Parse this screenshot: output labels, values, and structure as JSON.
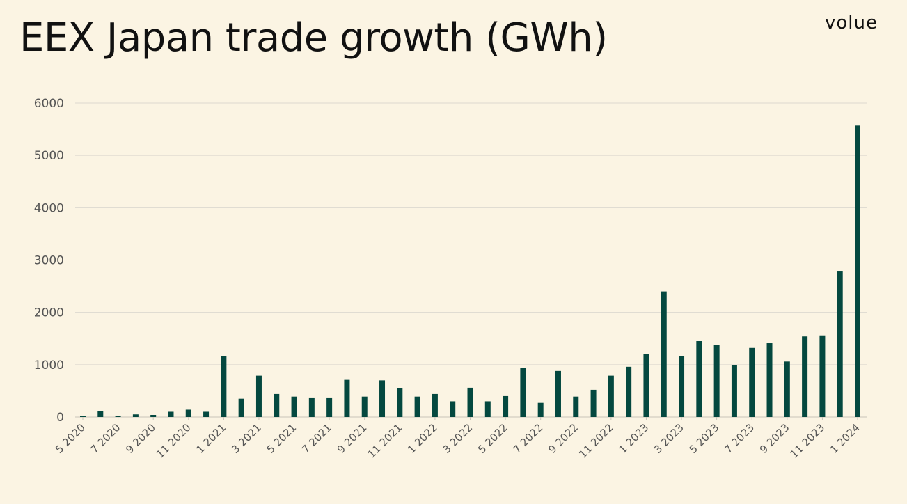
{
  "header": {
    "title": "EEX Japan trade growth (GWh)",
    "logo": "volue"
  },
  "colors": {
    "bar": "#04483f",
    "grid": "#dcd8cf",
    "background": "#fbf4e3"
  },
  "chart_data": {
    "type": "bar",
    "title": "EEX Japan trade growth (GWh)",
    "xlabel": "",
    "ylabel": "",
    "ylim": [
      0,
      6000
    ],
    "yticks": [
      0,
      1000,
      2000,
      3000,
      4000,
      5000,
      6000
    ],
    "grid": true,
    "categories": [
      "5 2020",
      "6 2020",
      "7 2020",
      "8 2020",
      "9 2020",
      "10 2020",
      "11 2020",
      "12 2020",
      "1 2021",
      "2 2021",
      "3 2021",
      "4 2021",
      "5 2021",
      "6 2021",
      "7 2021",
      "8 2021",
      "9 2021",
      "10 2021",
      "11 2021",
      "12 2021",
      "1 2022",
      "2 2022",
      "3 2022",
      "4 2022",
      "5 2022",
      "6 2022",
      "7 2022",
      "8 2022",
      "9 2022",
      "10 2022",
      "11 2022",
      "12 2022",
      "1 2023",
      "2 2023",
      "3 2023",
      "4 2023",
      "5 2023",
      "6 2023",
      "7 2023",
      "8 2023",
      "9 2023",
      "10 2023",
      "11 2023",
      "12 2023",
      "1 2024"
    ],
    "tick_labels_shown": [
      "5 2020",
      "7 2020",
      "9 2020",
      "11 2020",
      "1 2021",
      "3 2021",
      "5 2021",
      "7 2021",
      "9 2021",
      "11 2021",
      "1 2022",
      "3 2022",
      "5 2022",
      "7 2022",
      "9 2022",
      "11 2022",
      "1 2023",
      "3 2023",
      "5 2023",
      "7 2023",
      "9 2023",
      "11 2023",
      "1 2024"
    ],
    "values": [
      20,
      110,
      20,
      50,
      40,
      100,
      140,
      100,
      1160,
      350,
      790,
      440,
      390,
      360,
      360,
      710,
      390,
      700,
      550,
      390,
      440,
      300,
      560,
      300,
      400,
      940,
      270,
      880,
      390,
      520,
      790,
      960,
      1210,
      2400,
      1170,
      1450,
      1380,
      990,
      1320,
      1410,
      1060,
      1540,
      1560,
      2780,
      5570
    ]
  }
}
